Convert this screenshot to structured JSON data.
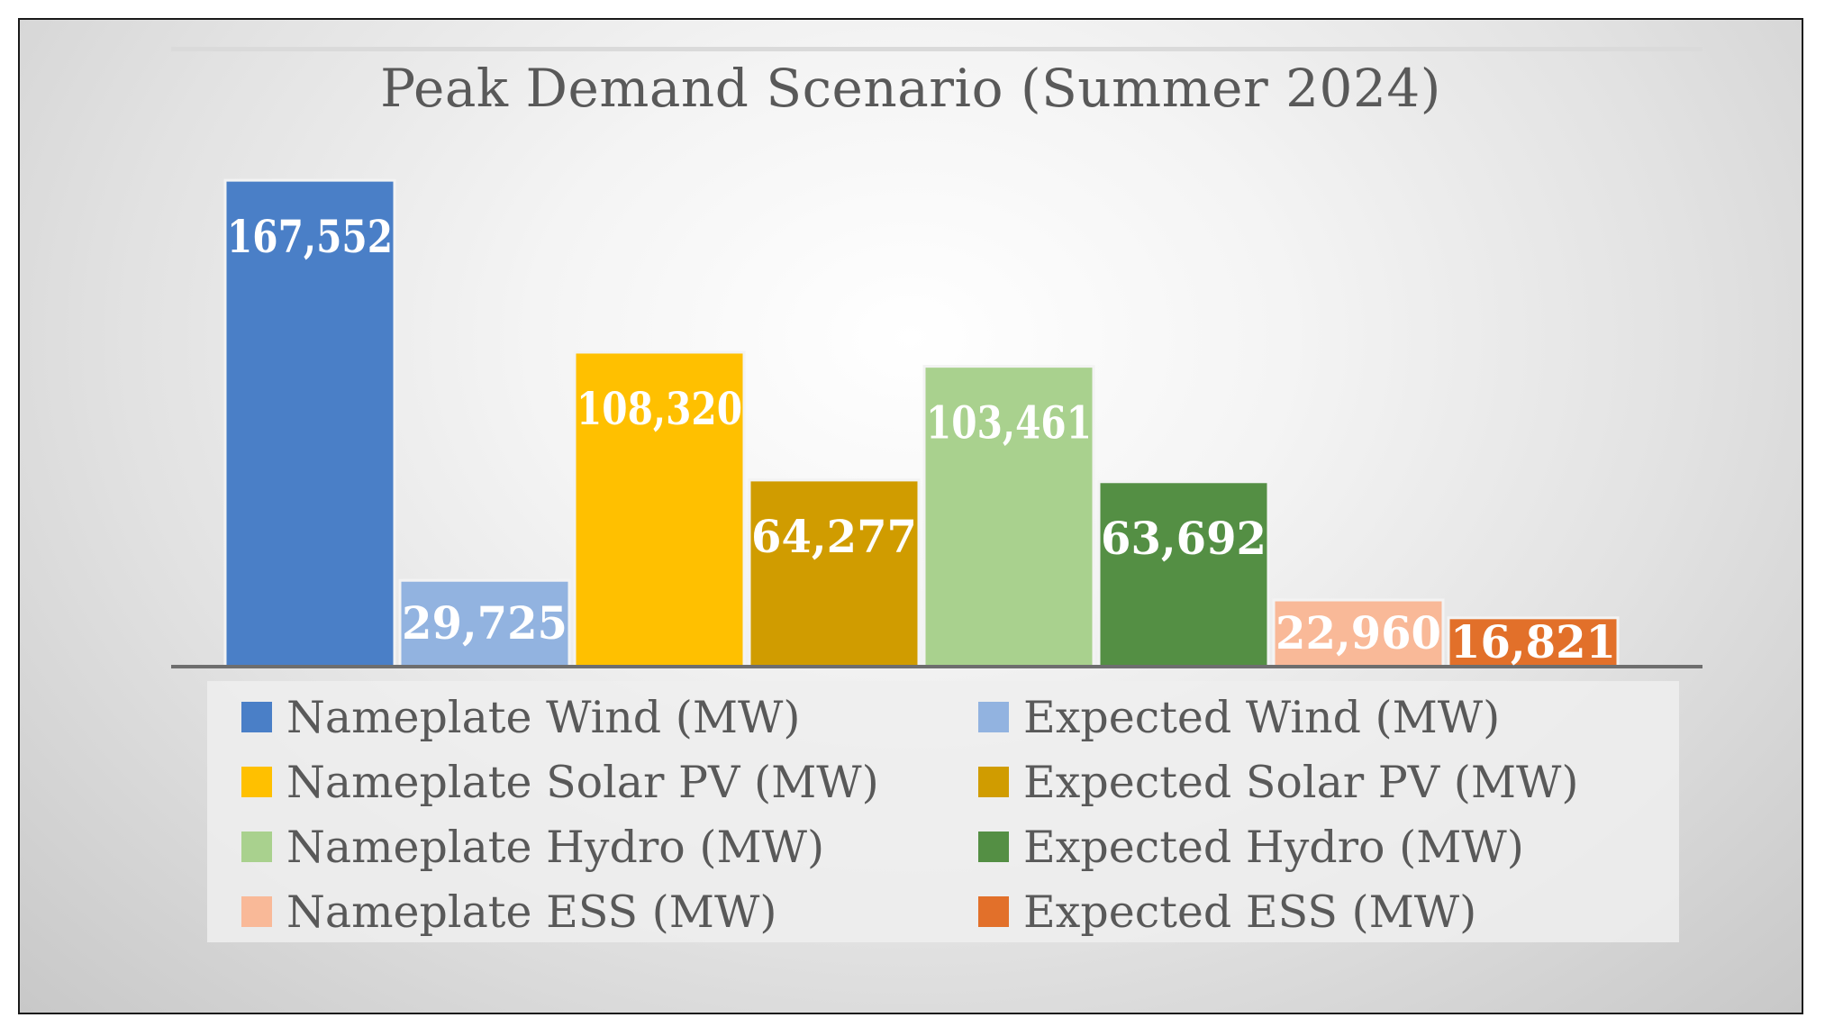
{
  "chart_data": {
    "type": "bar",
    "title": "Peak Demand Scenario (Summer 2024)",
    "xlabel": "",
    "ylabel": "",
    "ylim": [
      0,
      180000
    ],
    "grid": false,
    "legend_position": "bottom",
    "series": [
      {
        "name": "Nameplate Wind (MW)",
        "value": 167552,
        "label": "167,552",
        "color": "#4a7fc7"
      },
      {
        "name": "Expected Wind (MW)",
        "value": 29725,
        "label": "29,725",
        "color": "#92b3e0"
      },
      {
        "name": "Nameplate Solar PV (MW)",
        "value": 108320,
        "label": "108,320",
        "color": "#ffc000"
      },
      {
        "name": "Expected Solar PV (MW)",
        "value": 64277,
        "label": "64,277",
        "color": "#d09c00"
      },
      {
        "name": "Nameplate Hydro (MW)",
        "value": 103461,
        "label": "103,461",
        "color": "#a9d18e"
      },
      {
        "name": "Expected Hydro (MW)",
        "value": 63692,
        "label": "63,692",
        "color": "#548f44"
      },
      {
        "name": "Nameplate ESS (MW)",
        "value": 22960,
        "label": "22,960",
        "color": "#f9b998"
      },
      {
        "name": "Expected ESS (MW)",
        "value": 16821,
        "label": "16,821",
        "color": "#e2702a"
      }
    ]
  }
}
